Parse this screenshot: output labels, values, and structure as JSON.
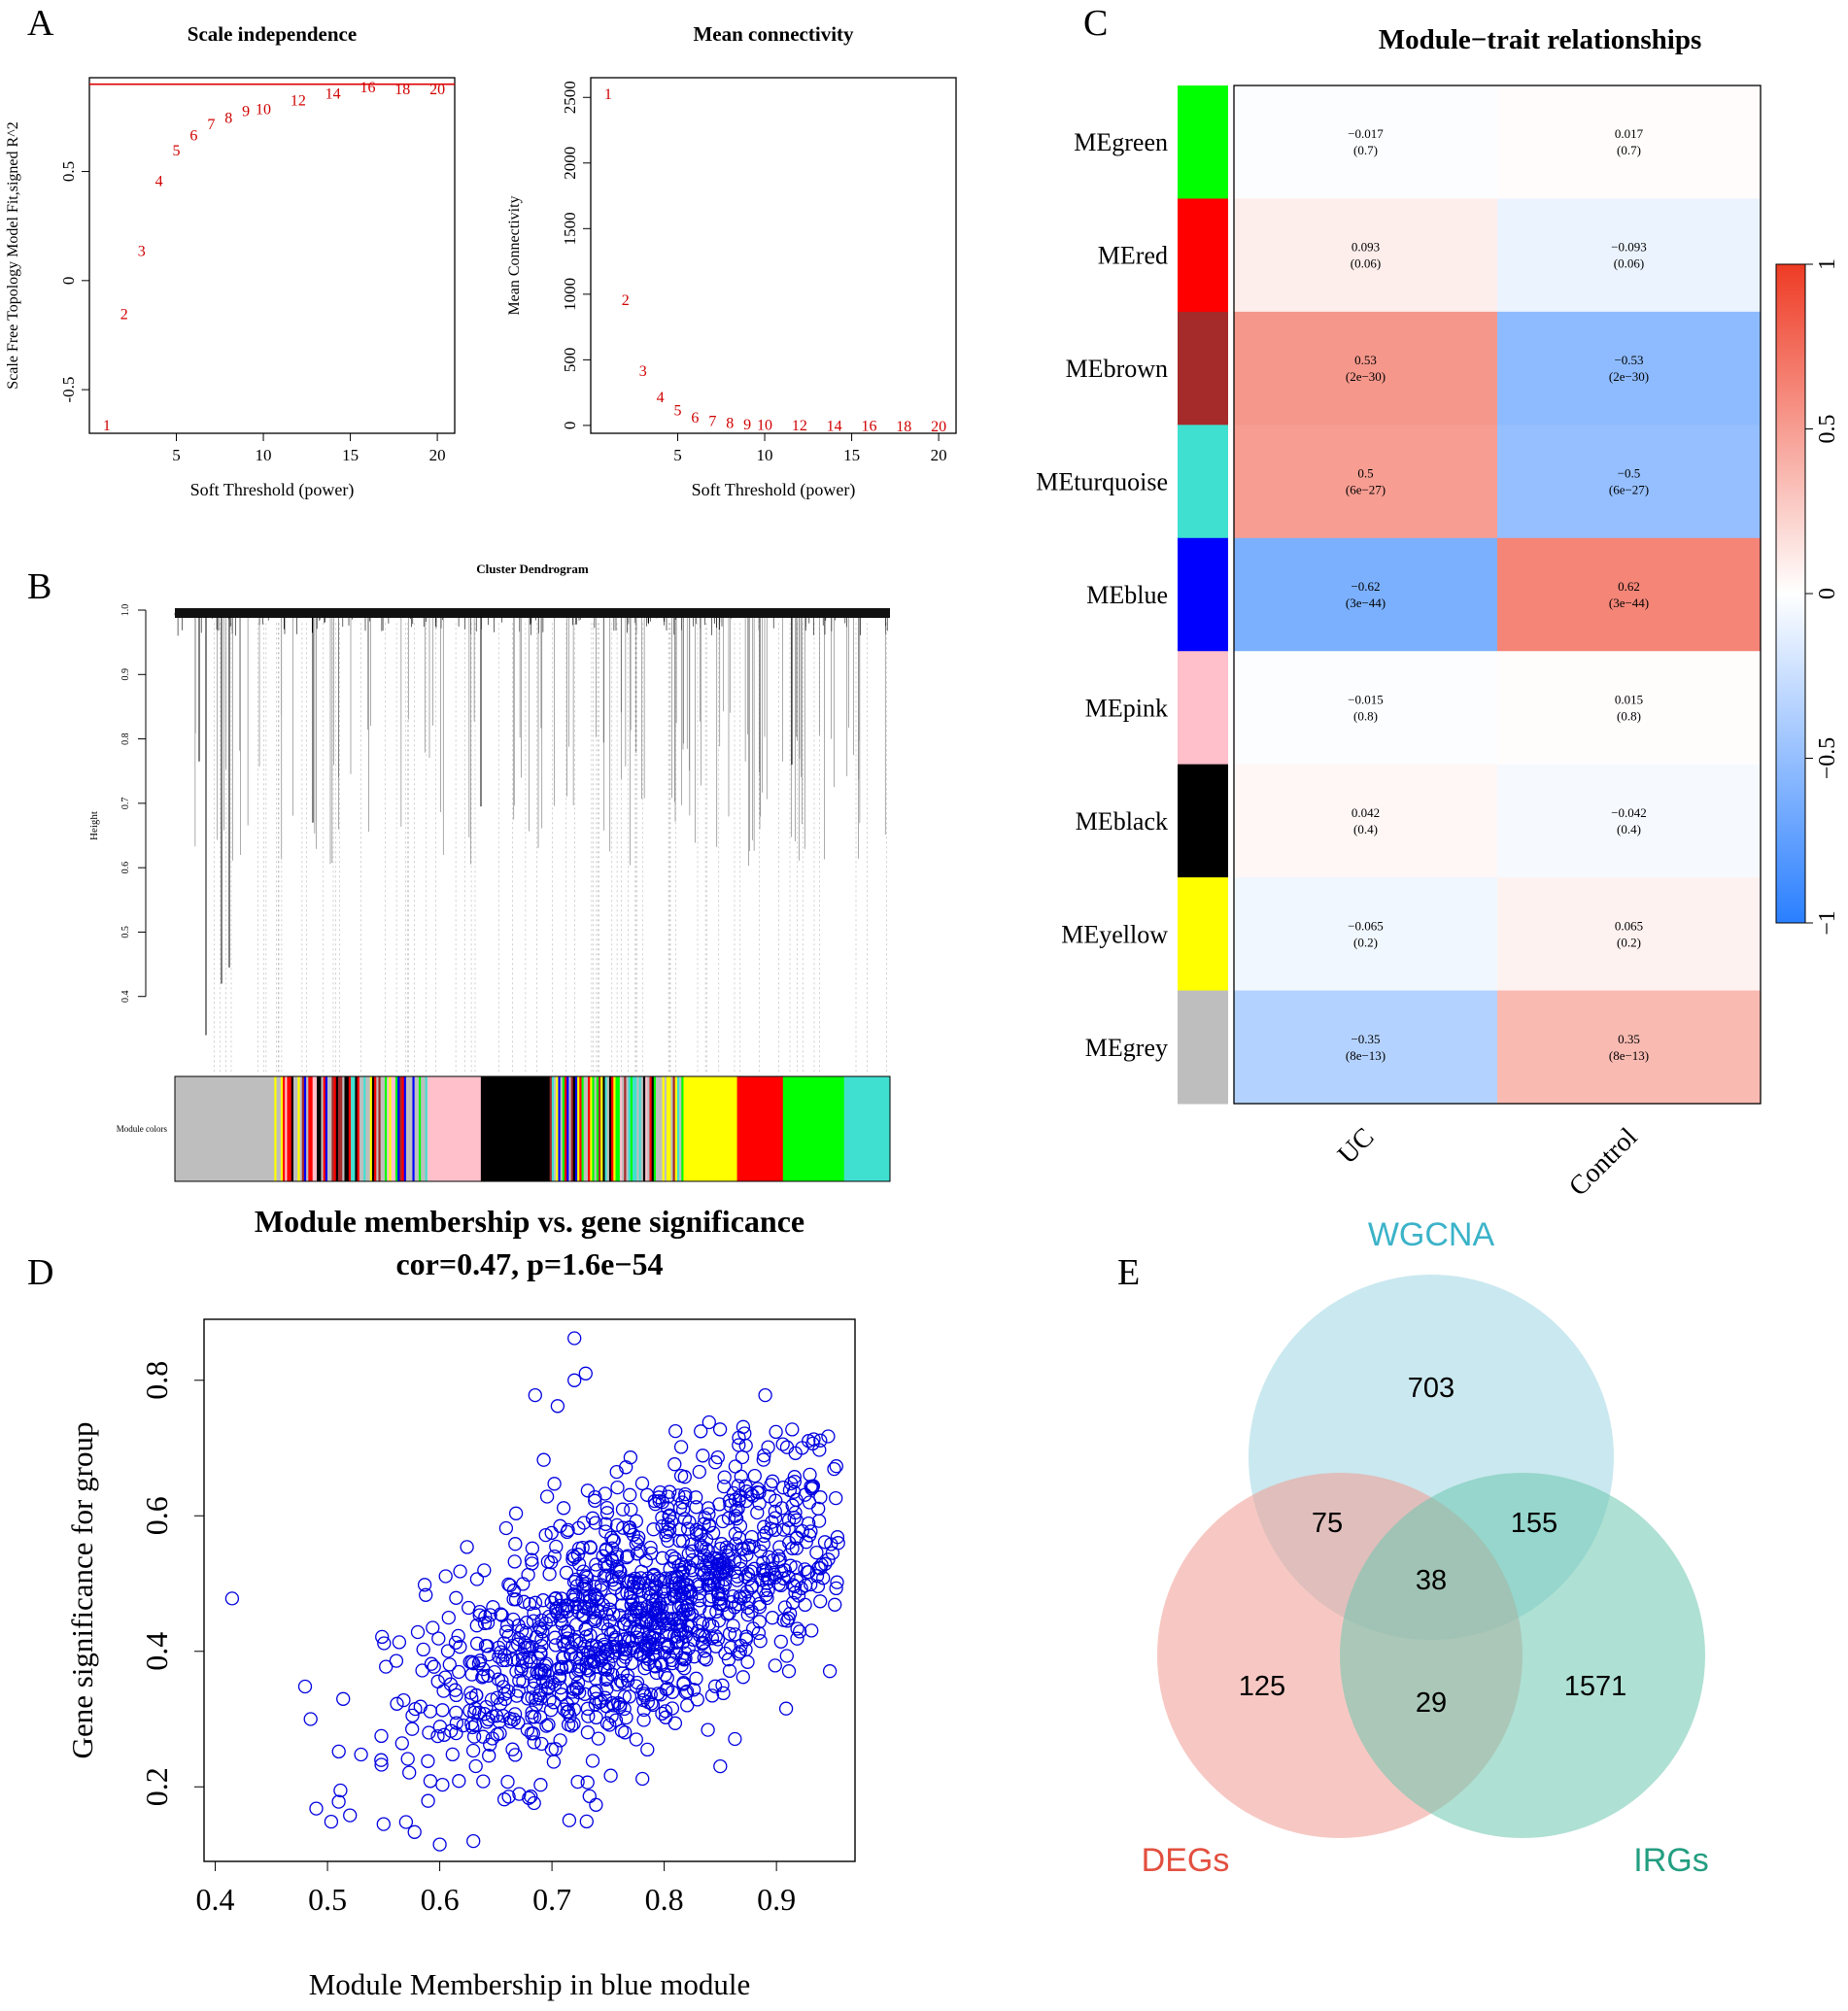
{
  "panel_labels": {
    "a": "A",
    "b": "B",
    "c": "C",
    "d": "D",
    "e": "E"
  },
  "chart_data": [
    {
      "id": "A1",
      "type": "scatter",
      "title": "Scale independence",
      "xlabel": "Soft Threshold (power)",
      "ylabel": "Scale Free Topology Model Fit,signed R^2",
      "xlim": [
        0,
        21
      ],
      "ylim": [
        -0.7,
        0.93
      ],
      "xticks": [
        5,
        10,
        15,
        20
      ],
      "yticks": [
        -0.5,
        0.0,
        0.5
      ],
      "cutoff_line": 0.9,
      "line_color": "#e00000",
      "point_color": "#d00000",
      "points": [
        {
          "label": "1",
          "x": 1,
          "y": -0.66
        },
        {
          "label": "2",
          "x": 2,
          "y": -0.15
        },
        {
          "label": "3",
          "x": 3,
          "y": 0.14
        },
        {
          "label": "4",
          "x": 4,
          "y": 0.46
        },
        {
          "label": "5",
          "x": 5,
          "y": 0.6
        },
        {
          "label": "6",
          "x": 6,
          "y": 0.67
        },
        {
          "label": "7",
          "x": 7,
          "y": 0.72
        },
        {
          "label": "8",
          "x": 8,
          "y": 0.75
        },
        {
          "label": "9",
          "x": 9,
          "y": 0.78
        },
        {
          "label": "10",
          "x": 10,
          "y": 0.79
        },
        {
          "label": "12",
          "x": 12,
          "y": 0.83
        },
        {
          "label": "14",
          "x": 14,
          "y": 0.86
        },
        {
          "label": "16",
          "x": 16,
          "y": 0.89
        },
        {
          "label": "18",
          "x": 18,
          "y": 0.88
        },
        {
          "label": "20",
          "x": 20,
          "y": 0.88
        }
      ]
    },
    {
      "id": "A2",
      "type": "scatter",
      "title": "Mean connectivity",
      "xlabel": "Soft Threshold (power)",
      "ylabel": "Mean Connectivity",
      "xlim": [
        0,
        21
      ],
      "ylim": [
        -60,
        2650
      ],
      "xticks": [
        5,
        10,
        15,
        20
      ],
      "yticks": [
        0,
        500,
        1000,
        1500,
        2000,
        2500
      ],
      "point_color": "#d00000",
      "points": [
        {
          "label": "1",
          "x": 1,
          "y": 2530
        },
        {
          "label": "2",
          "x": 2,
          "y": 960
        },
        {
          "label": "3",
          "x": 3,
          "y": 420
        },
        {
          "label": "4",
          "x": 4,
          "y": 220
        },
        {
          "label": "5",
          "x": 5,
          "y": 120
        },
        {
          "label": "6",
          "x": 6,
          "y": 65
        },
        {
          "label": "7",
          "x": 7,
          "y": 40
        },
        {
          "label": "8",
          "x": 8,
          "y": 25
        },
        {
          "label": "9",
          "x": 9,
          "y": 15
        },
        {
          "label": "10",
          "x": 10,
          "y": 10
        },
        {
          "label": "12",
          "x": 12,
          "y": 5
        },
        {
          "label": "14",
          "x": 14,
          "y": 3
        },
        {
          "label": "16",
          "x": 16,
          "y": 2
        },
        {
          "label": "18",
          "x": 18,
          "y": 1
        },
        {
          "label": "20",
          "x": 20,
          "y": 1
        }
      ]
    },
    {
      "id": "B",
      "type": "dendrogram",
      "title": "Cluster Dendrogram",
      "ylabel": "Height",
      "ylim": [
        0.3,
        1.0
      ],
      "yticks": [
        "0.4",
        "0.5",
        "0.6",
        "0.7",
        "0.8",
        "0.9",
        "1.0"
      ],
      "color_bar_label": "Module colors",
      "module_blocks": [
        {
          "color": "#bebebe",
          "weight": 2.6
        },
        {
          "color": "mixed",
          "weight": 4.0
        },
        {
          "color": "#ffc0cb",
          "weight": 1.4
        },
        {
          "color": "#000000",
          "weight": 1.8
        },
        {
          "color": "mixed",
          "weight": 3.5
        },
        {
          "color": "#ffff00",
          "weight": 1.4
        },
        {
          "color": "#ff0000",
          "weight": 1.2
        },
        {
          "color": "#00ff00",
          "weight": 1.6
        },
        {
          "color": "#40e0d0",
          "weight": 1.2
        }
      ]
    },
    {
      "id": "C",
      "type": "heatmap",
      "title": "Module−trait relationships",
      "columns": [
        "UC",
        "Control"
      ],
      "rows": [
        {
          "name": "MEgreen",
          "color": "#00ff00",
          "cells": [
            {
              "r": "−0.017",
              "p": "(0.7)",
              "v": -0.017
            },
            {
              "r": "0.017",
              "p": "(0.7)",
              "v": 0.017
            }
          ]
        },
        {
          "name": "MEred",
          "color": "#ff0000",
          "cells": [
            {
              "r": "0.093",
              "p": "(0.06)",
              "v": 0.093
            },
            {
              "r": "−0.093",
              "p": "(0.06)",
              "v": -0.093
            }
          ]
        },
        {
          "name": "MEbrown",
          "color": "#a52a2a",
          "cells": [
            {
              "r": "0.53",
              "p": "(2e−30)",
              "v": 0.53
            },
            {
              "r": "−0.53",
              "p": "(2e−30)",
              "v": -0.53
            }
          ]
        },
        {
          "name": "MEturquoise",
          "color": "#40e0d0",
          "cells": [
            {
              "r": "0.5",
              "p": "(6e−27)",
              "v": 0.5
            },
            {
              "r": "−0.5",
              "p": "(6e−27)",
              "v": -0.5
            }
          ]
        },
        {
          "name": "MEblue",
          "color": "#0000ff",
          "cells": [
            {
              "r": "−0.62",
              "p": "(3e−44)",
              "v": -0.62
            },
            {
              "r": "0.62",
              "p": "(3e−44)",
              "v": 0.62
            }
          ]
        },
        {
          "name": "MEpink",
          "color": "#ffc0cb",
          "cells": [
            {
              "r": "−0.015",
              "p": "(0.8)",
              "v": -0.015
            },
            {
              "r": "0.015",
              "p": "(0.8)",
              "v": 0.015
            }
          ]
        },
        {
          "name": "MEblack",
          "color": "#000000",
          "cells": [
            {
              "r": "0.042",
              "p": "(0.4)",
              "v": 0.042
            },
            {
              "r": "−0.042",
              "p": "(0.4)",
              "v": -0.042
            }
          ]
        },
        {
          "name": "MEyellow",
          "color": "#ffff00",
          "cells": [
            {
              "r": "−0.065",
              "p": "(0.2)",
              "v": -0.065
            },
            {
              "r": "0.065",
              "p": "(0.2)",
              "v": 0.065
            }
          ]
        },
        {
          "name": "MEgrey",
          "color": "#bebebe",
          "cells": [
            {
              "r": "−0.35",
              "p": "(8e−13)",
              "v": -0.35
            },
            {
              "r": "0.35",
              "p": "(8e−13)",
              "v": 0.35
            }
          ]
        }
      ],
      "scale_range": [
        -1,
        1
      ],
      "scale_ticks": [
        {
          "v": 1,
          "label": "1"
        },
        {
          "v": 0.5,
          "label": "0.5"
        },
        {
          "v": 0,
          "label": "0"
        },
        {
          "v": -0.5,
          "label": "−0.5"
        },
        {
          "v": -1,
          "label": "−1"
        }
      ],
      "low_color": "#2a7fff",
      "high_color": "#ee3b24"
    },
    {
      "id": "D",
      "type": "scatter",
      "title": "Module membership vs. gene significance",
      "subtitle": "cor=0.47, p=1.6e−54",
      "xlabel": "Module Membership in blue module",
      "ylabel": "Gene significance for group",
      "xlim": [
        0.39,
        0.97
      ],
      "ylim": [
        0.09,
        0.89
      ],
      "xticks": [
        0.4,
        0.5,
        0.6,
        0.7,
        0.8,
        0.9
      ],
      "xtick_labels": [
        "0.4",
        "0.5",
        "0.6",
        "0.7",
        "0.8",
        "0.9"
      ],
      "yticks": [
        0.2,
        0.4,
        0.6,
        0.8
      ],
      "ytick_labels": [
        "0.2",
        "0.4",
        "0.6",
        "0.8"
      ],
      "point_color": "#0000e0",
      "n_points": 1200,
      "fit": {
        "slope": 0.62,
        "intercept": -0.0,
        "noise_sd": 0.09,
        "x_mean": 0.78,
        "x_sd": 0.1
      },
      "highlight_points": [
        [
          0.415,
          0.478
        ],
        [
          0.72,
          0.862
        ],
        [
          0.73,
          0.81
        ],
        [
          0.72,
          0.8
        ],
        [
          0.705,
          0.762
        ],
        [
          0.685,
          0.778
        ],
        [
          0.89,
          0.778
        ],
        [
          0.6,
          0.115
        ],
        [
          0.63,
          0.12
        ],
        [
          0.55,
          0.145
        ],
        [
          0.57,
          0.148
        ],
        [
          0.49,
          0.168
        ],
        [
          0.51,
          0.178
        ],
        [
          0.52,
          0.158
        ],
        [
          0.48,
          0.348
        ],
        [
          0.485,
          0.3
        ],
        [
          0.785,
          0.255
        ],
        [
          0.955,
          0.56
        ],
        [
          0.95,
          0.545
        ],
        [
          0.84,
          0.738
        ],
        [
          0.81,
          0.725
        ]
      ]
    },
    {
      "id": "E",
      "type": "venn",
      "sets": [
        {
          "name": "WGCNA",
          "color": "#9fd6e2",
          "label_color": "#3bb3c9"
        },
        {
          "name": "DEGs",
          "color": "#f19a92",
          "label_color": "#e24f3f"
        },
        {
          "name": "IRGs",
          "color": "#6cc6af",
          "label_color": "#239e80"
        }
      ],
      "regions": [
        {
          "key": "wgcna_only",
          "value": "703"
        },
        {
          "key": "wgcna_degs",
          "value": "75"
        },
        {
          "key": "wgcna_irgs",
          "value": "155"
        },
        {
          "key": "all_three",
          "value": "38"
        },
        {
          "key": "degs_only",
          "value": "125"
        },
        {
          "key": "degs_irgs",
          "value": "29"
        },
        {
          "key": "irgs_only",
          "value": "1571"
        }
      ]
    }
  ]
}
